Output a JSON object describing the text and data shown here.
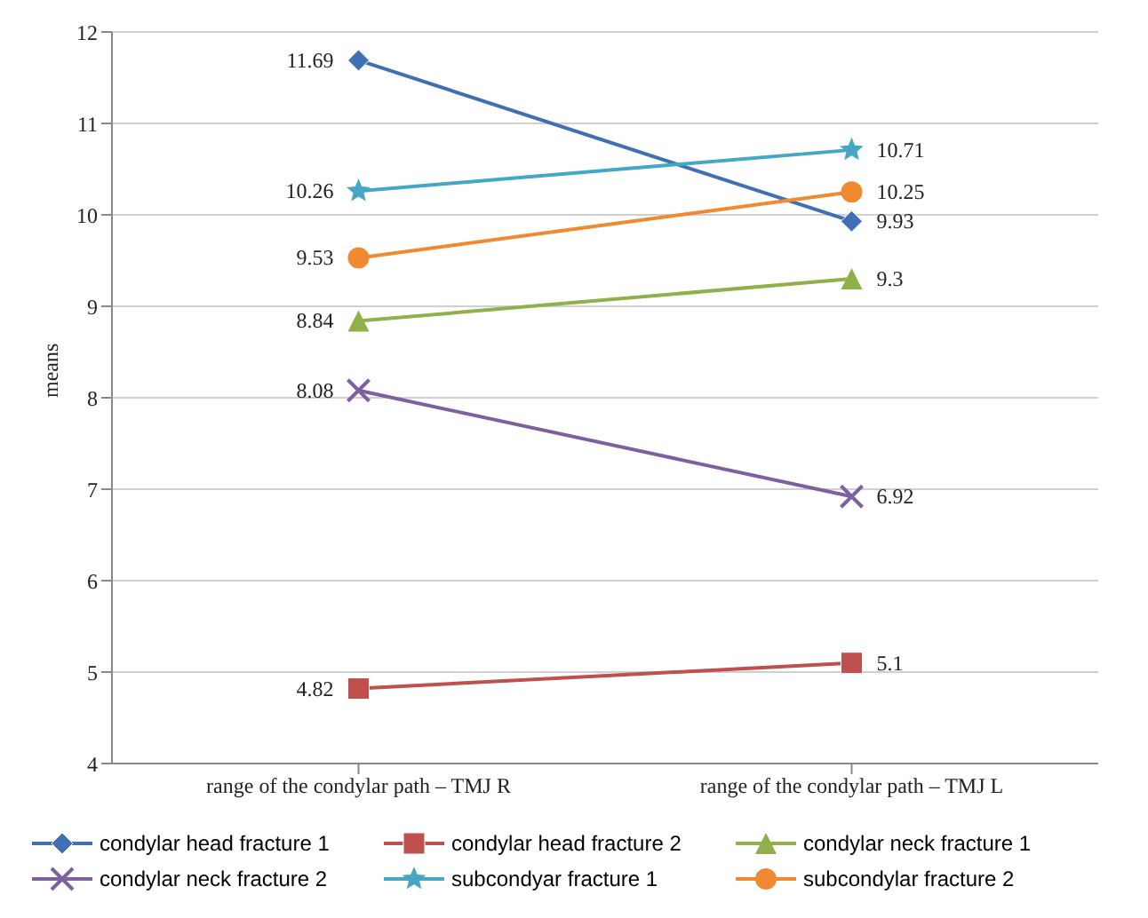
{
  "chart_data": {
    "type": "line",
    "ylabel": "means",
    "categories": [
      "range of the condylar path – TMJ R",
      "range of the condylar path – TMJ L"
    ],
    "series": [
      {
        "name": "condylar head fracture 1",
        "color": "#3f6fb5",
        "marker": "diamond",
        "values": [
          11.69,
          9.93
        ]
      },
      {
        "name": "condylar head fracture 2",
        "color": "#c0504d",
        "marker": "square",
        "values": [
          4.82,
          5.1
        ]
      },
      {
        "name": "condylar neck fracture 1",
        "color": "#8fb04a",
        "marker": "triangle",
        "values": [
          8.84,
          9.3
        ]
      },
      {
        "name": "condylar neck fracture 2",
        "color": "#7e60a0",
        "marker": "cross",
        "values": [
          8.08,
          6.92
        ]
      },
      {
        "name": "subcondyar fracture 1",
        "color": "#46a7c4",
        "marker": "star",
        "values": [
          10.26,
          10.71
        ]
      },
      {
        "name": "subcondylar fracture 2",
        "color": "#f08a30",
        "marker": "circle",
        "values": [
          9.53,
          10.25
        ]
      }
    ],
    "ylim": [
      4,
      12
    ],
    "yticks": [
      4,
      5,
      6,
      7,
      8,
      9,
      10,
      11,
      12
    ],
    "grid": "y",
    "legend": "bottom",
    "data_labels": true,
    "line_style": "solid"
  }
}
